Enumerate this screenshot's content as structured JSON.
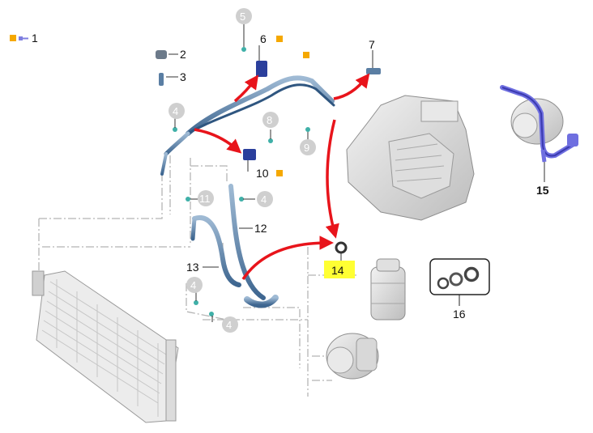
{
  "legend": {
    "label": "1",
    "colors": [
      "#f5a800",
      "#7f7fe0"
    ]
  },
  "callouts": {
    "c2": "2",
    "c3": "3",
    "c4a": "4",
    "c4b": "4",
    "c4c": "4",
    "c4d": "4",
    "c5": "5",
    "c6": "6",
    "c7": "7",
    "c8": "8",
    "c9": "9",
    "c10": "10",
    "c11": "11",
    "c12": "12",
    "c13": "13",
    "c14": "14",
    "c15": "15",
    "c16": "16"
  },
  "colors": {
    "marker_orange": "#f5a800",
    "highlight_yellow": "#ffff33",
    "arrow_red": "#e8141b",
    "pipe_blue": "#5a7ea3",
    "part_blue": "#2b3f9c",
    "seal_cyan": "#3fb0a8",
    "callout_grey": "#c9c9c9",
    "pipe_purple": "#6f6fe0"
  },
  "icons": [
    "condenser-icon",
    "compressor-icon",
    "drier-icon",
    "hvac-unit-icon",
    "seal-kit-icon"
  ]
}
